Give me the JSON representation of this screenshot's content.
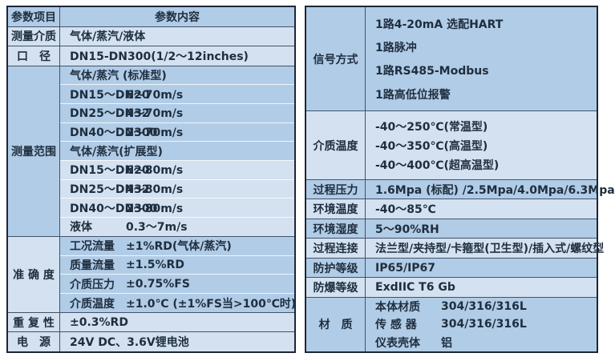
{
  "colors": {
    "band_dark": "#b1cce7",
    "band_light": "#d3e1f0",
    "outer_border": "#1c2736",
    "grid_line": "#42526a",
    "text": "#1f2e3e",
    "page_background": "#ffffff"
  },
  "left_table": {
    "header": {
      "col1": "参数项目",
      "col2": "参数内容"
    },
    "sections": [
      {
        "label": "测量介质",
        "rows": [
          {
            "text": "气体/蒸汽/液体"
          }
        ]
      },
      {
        "label": "口　径",
        "rows": [
          {
            "text": "DN15-DN300(1/2～12inches)"
          }
        ]
      },
      {
        "label": "测量范围",
        "rows": [
          {
            "text": "气体/蒸汽 (标准型)"
          },
          {
            "name": "DN15～DN20",
            "value": "6～70m/s"
          },
          {
            "name": "DN25～DN32",
            "value": "4～70m/s"
          },
          {
            "name": "DN40～DN300",
            "value": "2～70m/s"
          },
          {
            "text": "气体/蒸汽(扩展型)"
          },
          {
            "name": "DN15～DN20",
            "value": "6～80m/s"
          },
          {
            "name": "DN25～DN32",
            "value": "4～80m/s"
          },
          {
            "name": "DN40～DN300",
            "value": "2～80m/s"
          },
          {
            "name": "液体",
            "value": "0.3～7m/s"
          }
        ]
      },
      {
        "label": "准 确 度",
        "rows": [
          {
            "name": "工况流量",
            "value": "±1%RD(气体/蒸汽)"
          },
          {
            "name": "质量流量",
            "value": "±1.5%RD"
          },
          {
            "name": "介质压力",
            "value": "±0.75%FS"
          },
          {
            "name": "介质温度",
            "value": "±1.0℃ (±1%FS当>100℃时)"
          }
        ]
      },
      {
        "label": "重 复 性",
        "rows": [
          {
            "text": "±0.3%RD"
          }
        ]
      },
      {
        "label": "电　源",
        "rows": [
          {
            "text": "24V DC、3.6V锂电池"
          }
        ]
      }
    ]
  },
  "right_table": {
    "sections": [
      {
        "label": "信号方式",
        "lines": [
          "1路4-20mA 选配HART",
          "1路脉冲",
          "1路RS485-Modbus",
          "1路高低位报警"
        ]
      },
      {
        "label": "介质温度",
        "lines": [
          "-40～250℃(常温型)",
          "-40～350℃(高温型)",
          "-40～400℃(超高温型)"
        ]
      },
      {
        "label": "过程压力",
        "lines": [
          "1.6Mpa (标配) /2.5Mpa/4.0Mpa/6.3Mpa"
        ]
      },
      {
        "label": "环境温度",
        "lines": [
          "-40～85℃"
        ]
      },
      {
        "label": "环境湿度",
        "lines": [
          "5～90%RH"
        ]
      },
      {
        "label": "过程连接",
        "lines": [
          "法兰型/夹持型/卡箍型(卫生型)/插入式/螺纹型"
        ]
      },
      {
        "label": "防护等级",
        "lines": [
          "IP65/IP67"
        ]
      },
      {
        "label": "防爆等级",
        "lines": [
          "ExdIIC T6 Gb"
        ]
      },
      {
        "label": "材　质",
        "rows": [
          {
            "name": "本体材质",
            "value": "304/316/316L"
          },
          {
            "name": "传 感 器",
            "value": "304/316/316L"
          },
          {
            "name": "仪表壳体",
            "value": "铝"
          }
        ]
      }
    ]
  }
}
